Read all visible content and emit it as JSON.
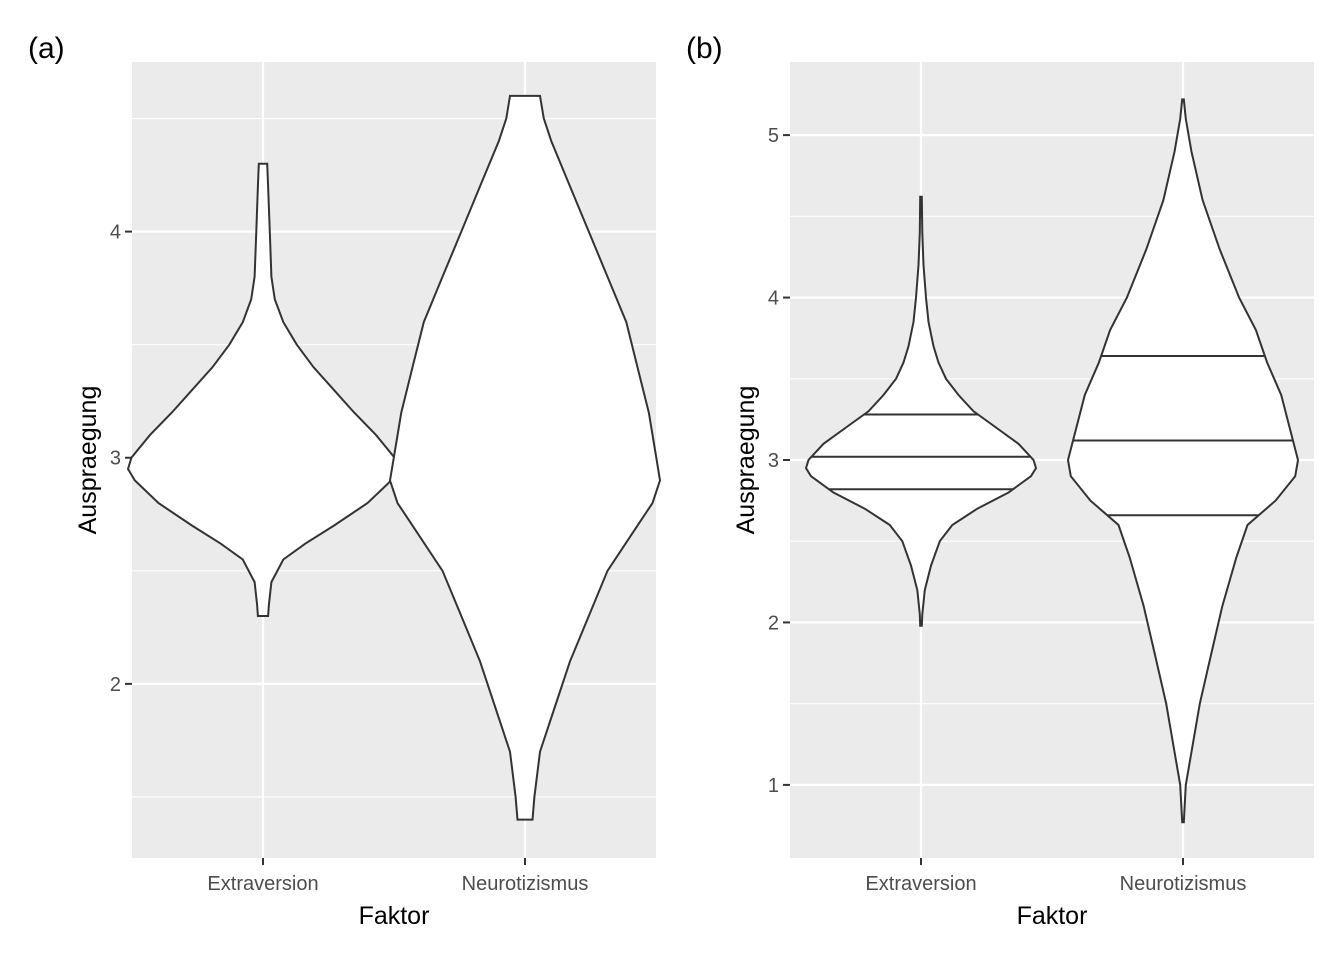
{
  "chart_data": [
    {
      "panel_label": "(a)",
      "type": "violin",
      "xlabel": "Faktor",
      "ylabel": "Auspraegung",
      "categories": [
        "Extraversion",
        "Neurotizismus"
      ],
      "ylim": [
        1.23,
        4.75
      ],
      "yticks": [
        2,
        3,
        4
      ],
      "ytick_labels": [
        "2",
        "3",
        "4"
      ],
      "grid": true,
      "background": "#ebebeb",
      "violins": [
        {
          "name": "Extraversion",
          "min": 2.3,
          "max": 4.3,
          "density": [
            [
              2.3,
              0.03
            ],
            [
              2.35,
              0.035
            ],
            [
              2.45,
              0.05
            ],
            [
              2.55,
              0.12
            ],
            [
              2.62,
              0.25
            ],
            [
              2.7,
              0.42
            ],
            [
              2.8,
              0.62
            ],
            [
              2.9,
              0.76
            ],
            [
              2.95,
              0.8
            ],
            [
              3.0,
              0.78
            ],
            [
              3.1,
              0.67
            ],
            [
              3.2,
              0.54
            ],
            [
              3.3,
              0.42
            ],
            [
              3.4,
              0.3
            ],
            [
              3.5,
              0.2
            ],
            [
              3.6,
              0.12
            ],
            [
              3.7,
              0.07
            ],
            [
              3.8,
              0.05
            ],
            [
              4.0,
              0.04
            ],
            [
              4.2,
              0.03
            ],
            [
              4.3,
              0.025
            ]
          ],
          "quantiles": []
        },
        {
          "name": "Neurotizismus",
          "min": 1.4,
          "max": 4.6,
          "density": [
            [
              1.4,
              0.02
            ],
            [
              1.5,
              0.025
            ],
            [
              1.7,
              0.04
            ],
            [
              1.9,
              0.08
            ],
            [
              2.1,
              0.12
            ],
            [
              2.3,
              0.17
            ],
            [
              2.5,
              0.22
            ],
            [
              2.7,
              0.3
            ],
            [
              2.8,
              0.34
            ],
            [
              2.9,
              0.36
            ],
            [
              3.0,
              0.35
            ],
            [
              3.2,
              0.33
            ],
            [
              3.4,
              0.3
            ],
            [
              3.6,
              0.27
            ],
            [
              3.8,
              0.22
            ],
            [
              4.0,
              0.17
            ],
            [
              4.2,
              0.12
            ],
            [
              4.4,
              0.07
            ],
            [
              4.5,
              0.05
            ],
            [
              4.6,
              0.04
            ]
          ],
          "quantiles": []
        }
      ]
    },
    {
      "panel_label": "(b)",
      "type": "violin",
      "xlabel": "Faktor",
      "ylabel": "Auspraegung",
      "categories": [
        "Extraversion",
        "Neurotizismus"
      ],
      "ylim": [
        0.55,
        5.45
      ],
      "yticks": [
        1,
        2,
        3,
        4,
        5
      ],
      "ytick_labels": [
        "1",
        "2",
        "3",
        "4",
        "5"
      ],
      "grid": true,
      "background": "#ebebeb",
      "violins": [
        {
          "name": "Extraversion",
          "min": 1.98,
          "max": 4.62,
          "density": [
            [
              1.98,
              0.0
            ],
            [
              2.05,
              0.01
            ],
            [
              2.2,
              0.03
            ],
            [
              2.35,
              0.08
            ],
            [
              2.5,
              0.15
            ],
            [
              2.6,
              0.25
            ],
            [
              2.7,
              0.45
            ],
            [
              2.8,
              0.7
            ],
            [
              2.9,
              0.88
            ],
            [
              2.95,
              0.92
            ],
            [
              3.0,
              0.9
            ],
            [
              3.1,
              0.78
            ],
            [
              3.2,
              0.6
            ],
            [
              3.3,
              0.42
            ],
            [
              3.4,
              0.3
            ],
            [
              3.5,
              0.2
            ],
            [
              3.6,
              0.14
            ],
            [
              3.7,
              0.1
            ],
            [
              3.85,
              0.06
            ],
            [
              4.0,
              0.04
            ],
            [
              4.2,
              0.02
            ],
            [
              4.4,
              0.01
            ],
            [
              4.62,
              0.0
            ]
          ],
          "quantiles": [
            2.82,
            3.02,
            3.28
          ]
        },
        {
          "name": "Neurotizismus",
          "min": 0.77,
          "max": 5.22,
          "density": [
            [
              0.77,
              0.0
            ],
            [
              1.0,
              0.01
            ],
            [
              1.2,
              0.03
            ],
            [
              1.5,
              0.06
            ],
            [
              1.8,
              0.1
            ],
            [
              2.1,
              0.14
            ],
            [
              2.4,
              0.19
            ],
            [
              2.6,
              0.23
            ],
            [
              2.75,
              0.33
            ],
            [
              2.9,
              0.4
            ],
            [
              3.0,
              0.41
            ],
            [
              3.2,
              0.38
            ],
            [
              3.4,
              0.35
            ],
            [
              3.6,
              0.3
            ],
            [
              3.8,
              0.26
            ],
            [
              4.0,
              0.2
            ],
            [
              4.3,
              0.13
            ],
            [
              4.6,
              0.07
            ],
            [
              4.9,
              0.03
            ],
            [
              5.1,
              0.01
            ],
            [
              5.22,
              0.0
            ]
          ],
          "quantiles": [
            2.66,
            3.12,
            3.64
          ]
        }
      ]
    }
  ]
}
